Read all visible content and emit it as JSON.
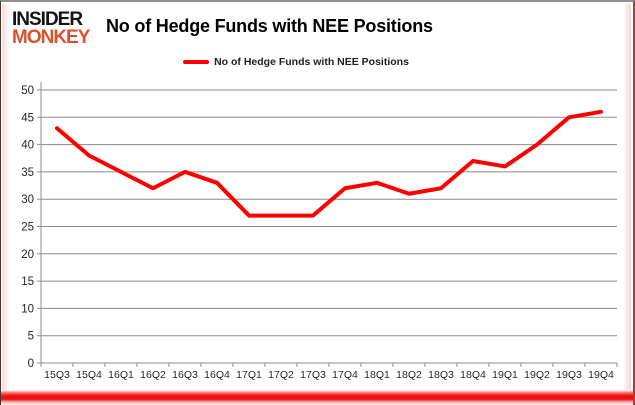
{
  "header": {
    "logo_line1": "INSIDER",
    "logo_line2": "MONKEY",
    "title": "No of Hedge Funds with NEE Positions"
  },
  "legend": {
    "label": "No of Hedge Funds with NEE Positions",
    "swatch_color": "#ff0000"
  },
  "chart_data": {
    "type": "line",
    "title": "No of Hedge Funds with NEE Positions",
    "categories": [
      "15Q3",
      "15Q4",
      "16Q1",
      "16Q2",
      "16Q3",
      "16Q4",
      "17Q1",
      "17Q2",
      "17Q3",
      "17Q4",
      "18Q1",
      "18Q2",
      "18Q3",
      "18Q4",
      "19Q1",
      "19Q2",
      "19Q3",
      "19Q4"
    ],
    "series": [
      {
        "name": "No of Hedge Funds with NEE Positions",
        "color": "#ff0000",
        "values": [
          43,
          38,
          35,
          32,
          35,
          33,
          27,
          27,
          27,
          32,
          33,
          31,
          32,
          37,
          36,
          40,
          45,
          46
        ]
      }
    ],
    "xlabel": "",
    "ylabel": "",
    "ylim": [
      0,
      50
    ],
    "ytick_step": 5,
    "grid": true,
    "legend_position": "top-center"
  },
  "colors": {
    "accent_red": "#ff0000",
    "logo_monkey": "#d9512e",
    "grid_line": "#8c8c8c",
    "axis_text": "#262626",
    "bottom_border": "#ee1111"
  }
}
